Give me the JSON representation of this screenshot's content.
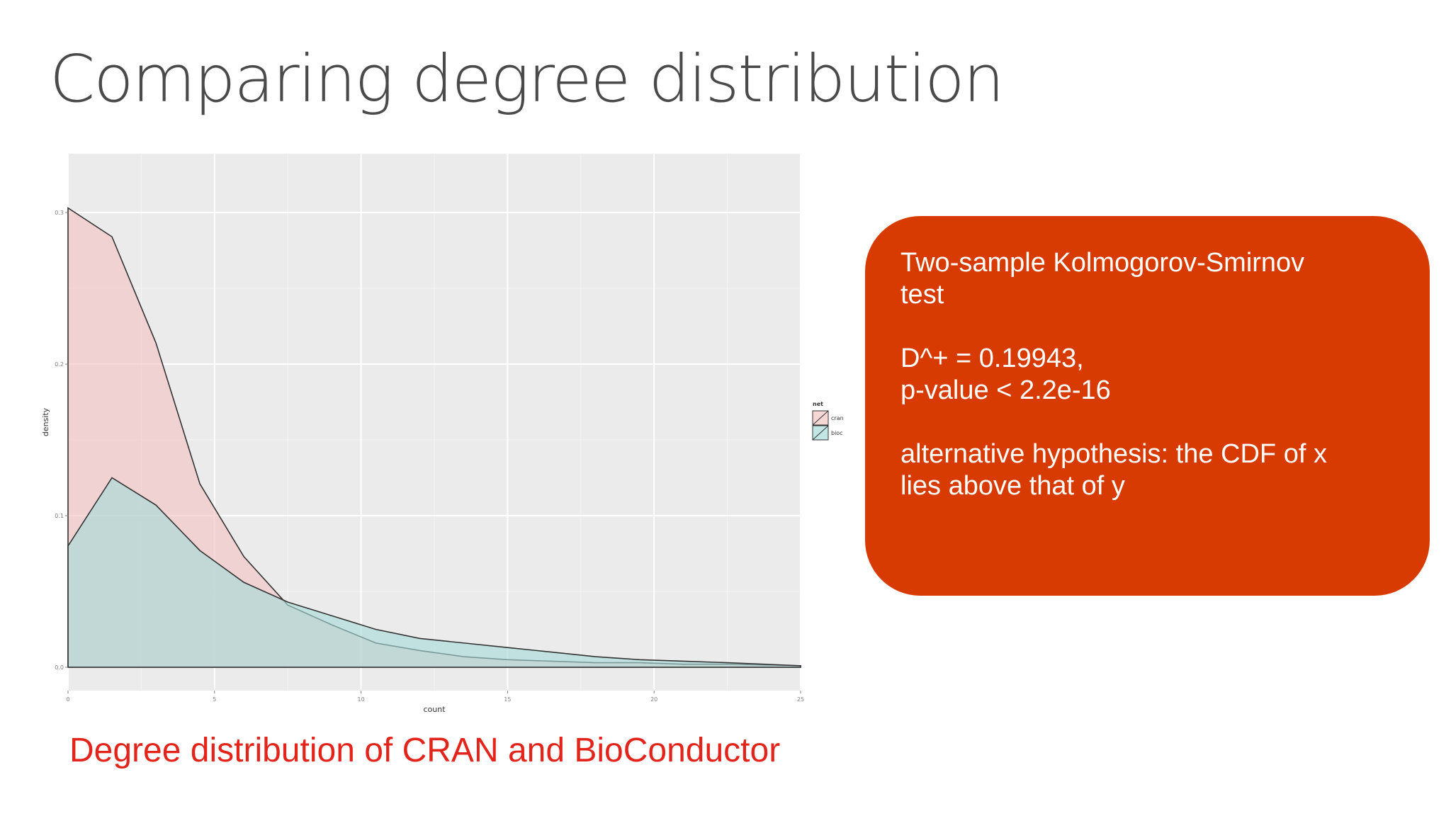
{
  "slide": {
    "title": "Comparing degree distribution",
    "caption": "Degree distribution of CRAN and BioConductor"
  },
  "callout": {
    "lines_block1": [
      "Two-sample Kolmogorov-Smirnov",
      "test"
    ],
    "lines_block2": [
      "D^+ = 0.19943,",
      "p-value < 2.2e-16"
    ],
    "lines_block3": [
      "alternative hypothesis: the CDF of x",
      "lies above that of y"
    ],
    "background_color": "#d83b01",
    "text_color": "#ffffff"
  },
  "chart_data": {
    "type": "area",
    "xlabel": "count",
    "ylabel": "density",
    "xlim": [
      0,
      25
    ],
    "ylim": [
      0,
      0.3
    ],
    "x_ticks": [
      0,
      5,
      10,
      15,
      20,
      25
    ],
    "y_ticks": [
      0.0,
      0.1,
      0.2,
      0.3
    ],
    "x_tick_labels": [
      "0",
      "5",
      "10",
      "15",
      "20",
      "25"
    ],
    "y_tick_labels": [
      "0.0",
      "0.1",
      "0.2",
      "0.3"
    ],
    "grid": true,
    "legend": {
      "title": "net",
      "placement": "right"
    },
    "series": [
      {
        "name": "cran",
        "fill": "#f4c4c4",
        "x": [
          0,
          1.5,
          3,
          4.5,
          6,
          7.5,
          9,
          10.5,
          12,
          13.5,
          15,
          16.5,
          18,
          19.5,
          21,
          22.5,
          25
        ],
        "y": [
          0.303,
          0.284,
          0.214,
          0.121,
          0.073,
          0.041,
          0.028,
          0.016,
          0.011,
          0.007,
          0.005,
          0.004,
          0.003,
          0.003,
          0.002,
          0.002,
          0.001
        ]
      },
      {
        "name": "bioc",
        "fill": "#a6dcd8",
        "x": [
          0,
          1.5,
          3,
          4.5,
          6,
          7.5,
          9,
          10.5,
          12,
          13.5,
          15,
          16.5,
          18,
          19.5,
          21,
          22.5,
          25
        ],
        "y": [
          0.08,
          0.125,
          0.107,
          0.077,
          0.056,
          0.043,
          0.034,
          0.025,
          0.019,
          0.016,
          0.013,
          0.01,
          0.007,
          0.005,
          0.004,
          0.003,
          0.001
        ]
      }
    ]
  }
}
